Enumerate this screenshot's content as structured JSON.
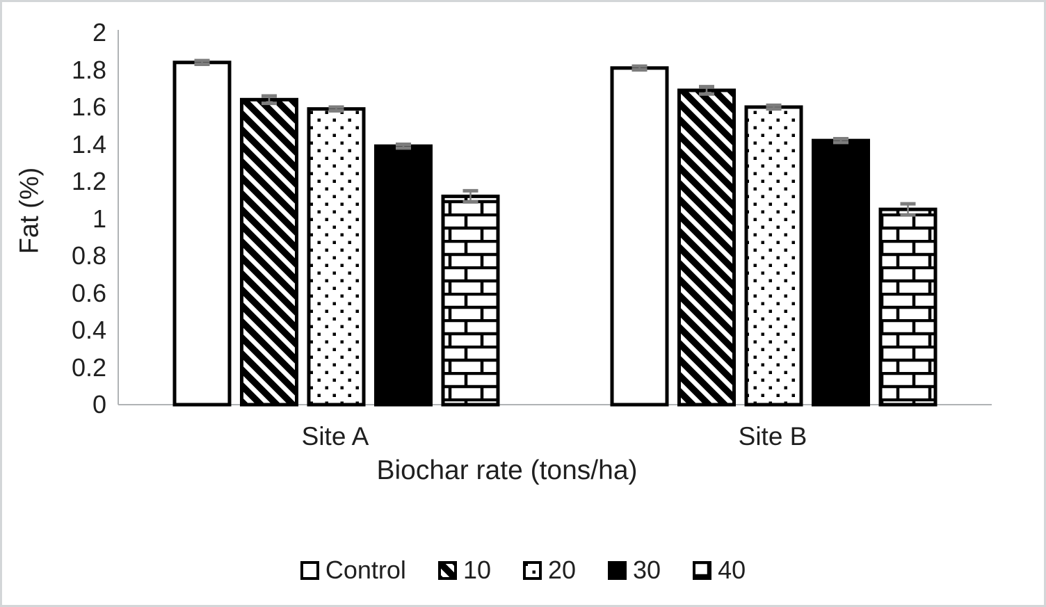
{
  "chart_data": {
    "type": "bar",
    "xlabel": "Biochar rate (tons/ha)",
    "ylabel": "Fat (%)",
    "categories": [
      "Site A",
      "Site B"
    ],
    "series": [
      {
        "name": "Control",
        "pattern": "open-white",
        "values": [
          1.84,
          1.81
        ],
        "errors": [
          0.01,
          0.01
        ]
      },
      {
        "name": "10",
        "pattern": "diagonal-hatch",
        "values": [
          1.64,
          1.69
        ],
        "errors": [
          0.02,
          0.02
        ]
      },
      {
        "name": "20",
        "pattern": "dots",
        "values": [
          1.59,
          1.6
        ],
        "errors": [
          0.01,
          0.01
        ]
      },
      {
        "name": "30",
        "pattern": "solid-black",
        "values": [
          1.39,
          1.42
        ],
        "errors": [
          0.01,
          0.01
        ]
      },
      {
        "name": "40",
        "pattern": "brick",
        "values": [
          1.12,
          1.05
        ],
        "errors": [
          0.03,
          0.03
        ]
      }
    ],
    "ylim": [
      0,
      2
    ],
    "ytick_step": 0.2,
    "yticks": [
      "0",
      "0.2",
      "0.4",
      "0.6",
      "0.8",
      "1",
      "1.2",
      "1.4",
      "1.6",
      "1.8",
      "2"
    ],
    "grid": false,
    "legend_position": "bottom",
    "colors": {
      "bar_fill": "#ffffff",
      "bar_stroke": "#000000",
      "error_bar": "#7d7d7d",
      "axis_line": "#b0b3b5",
      "text": "#1f1f1f",
      "frame_border": "#d3d6d8"
    }
  }
}
